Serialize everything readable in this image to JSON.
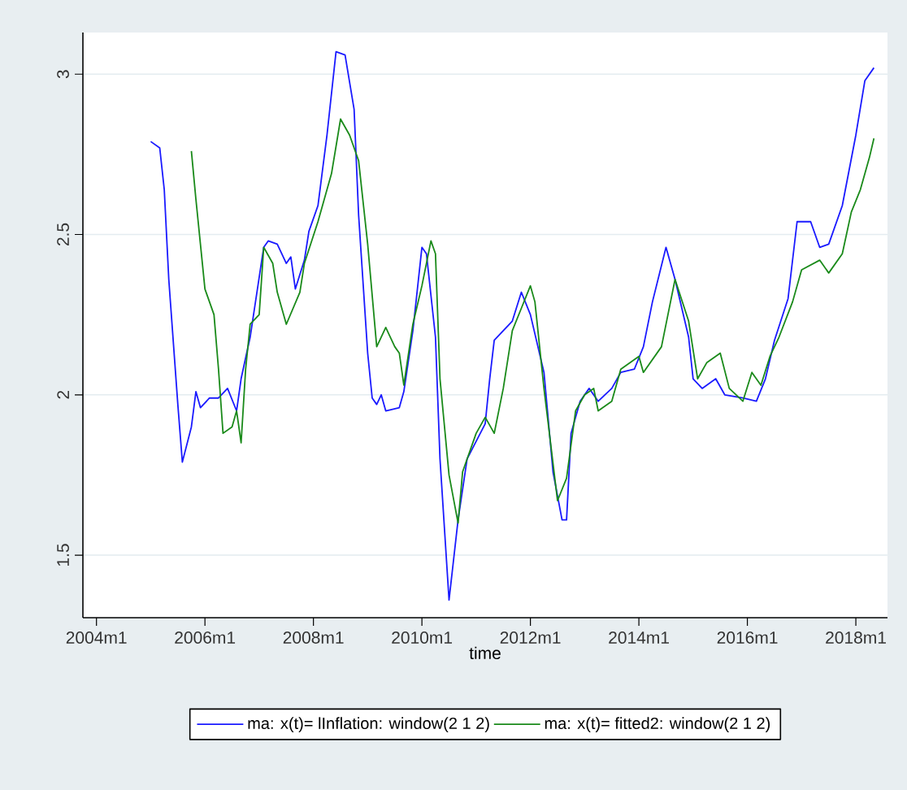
{
  "chart_data": {
    "type": "line",
    "xlabel": "time",
    "xlim": [
      "2003-10",
      "2018-08"
    ],
    "ylim": [
      1.305,
      3.13
    ],
    "xticks": [
      {
        "value": "2004-01",
        "label": "2004m1"
      },
      {
        "value": "2006-01",
        "label": "2006m1"
      },
      {
        "value": "2008-01",
        "label": "2008m1"
      },
      {
        "value": "2010-01",
        "label": "2010m1"
      },
      {
        "value": "2012-01",
        "label": "2012m1"
      },
      {
        "value": "2014-01",
        "label": "2014m1"
      },
      {
        "value": "2016-01",
        "label": "2016m1"
      },
      {
        "value": "2018-01",
        "label": "2018m1"
      }
    ],
    "yticks": [
      1.5,
      2,
      2.5,
      3
    ],
    "grid": "y",
    "legend": "bottom",
    "series": [
      {
        "name": "ma: x(t)= lInflation: window(2 1 2)",
        "color": "#1a1aff",
        "x": [
          "2005-01",
          "2005-03",
          "2005-04",
          "2005-05",
          "2005-07",
          "2005-08",
          "2005-10",
          "2005-11",
          "2005-12",
          "2006-02",
          "2006-04",
          "2006-06",
          "2006-08",
          "2006-09",
          "2006-11",
          "2007-02",
          "2007-03",
          "2007-05",
          "2007-07",
          "2007-08",
          "2007-09",
          "2007-11",
          "2007-12",
          "2008-02",
          "2008-04",
          "2008-06",
          "2008-08",
          "2008-10",
          "2008-11",
          "2009-01",
          "2009-02",
          "2009-03",
          "2009-04",
          "2009-05",
          "2009-08",
          "2009-09",
          "2009-11",
          "2010-01",
          "2010-02",
          "2010-04",
          "2010-05",
          "2010-07",
          "2010-09",
          "2010-11",
          "2011-03",
          "2011-04",
          "2011-05",
          "2011-07",
          "2011-09",
          "2011-11",
          "2012-01",
          "2012-04",
          "2012-06",
          "2012-08",
          "2012-09",
          "2012-10",
          "2012-12",
          "2013-02",
          "2013-04",
          "2013-07",
          "2013-09",
          "2013-12",
          "2014-02",
          "2014-04",
          "2014-07",
          "2014-09",
          "2014-12",
          "2015-01",
          "2015-03",
          "2015-06",
          "2015-08",
          "2015-12",
          "2016-03",
          "2016-05",
          "2016-07",
          "2016-10",
          "2016-12",
          "2017-03",
          "2017-05",
          "2017-07",
          "2017-10",
          "2018-01",
          "2018-03",
          "2018-05"
        ],
        "values": [
          2.79,
          2.77,
          2.64,
          2.36,
          1.97,
          1.79,
          1.9,
          2.01,
          1.96,
          1.99,
          1.99,
          2.02,
          1.95,
          2.05,
          2.18,
          2.46,
          2.48,
          2.47,
          2.41,
          2.43,
          2.33,
          2.42,
          2.51,
          2.59,
          2.81,
          3.07,
          3.06,
          2.89,
          2.56,
          2.13,
          1.99,
          1.97,
          2.0,
          1.95,
          1.96,
          2.01,
          2.2,
          2.46,
          2.44,
          2.18,
          1.8,
          1.36,
          1.61,
          1.8,
          1.91,
          2.05,
          2.17,
          2.2,
          2.23,
          2.32,
          2.25,
          2.07,
          1.76,
          1.61,
          1.61,
          1.88,
          1.98,
          2.02,
          1.98,
          2.02,
          2.07,
          2.08,
          2.15,
          2.29,
          2.46,
          2.36,
          2.18,
          2.05,
          2.02,
          2.05,
          2.0,
          1.99,
          1.98,
          2.05,
          2.17,
          2.3,
          2.54,
          2.54,
          2.46,
          2.47,
          2.59,
          2.81,
          2.98,
          3.02
        ]
      },
      {
        "name": "ma: x(t)= fitted2: window(2 1 2)",
        "color": "#1a8a1a",
        "x": [
          "2005-10",
          "2005-11",
          "2005-12",
          "2006-01",
          "2006-03",
          "2006-04",
          "2006-05",
          "2006-07",
          "2006-08",
          "2006-09",
          "2006-10",
          "2006-11",
          "2007-01",
          "2007-02",
          "2007-04",
          "2007-05",
          "2007-07",
          "2007-10",
          "2007-11",
          "2008-02",
          "2008-05",
          "2008-07",
          "2008-09",
          "2008-11",
          "2009-01",
          "2009-03",
          "2009-05",
          "2009-07",
          "2009-08",
          "2009-09",
          "2009-11",
          "2010-01",
          "2010-03",
          "2010-04",
          "2010-05",
          "2010-07",
          "2010-09",
          "2010-10",
          "2011-01",
          "2011-03",
          "2011-05",
          "2011-07",
          "2011-09",
          "2011-11",
          "2012-01",
          "2012-02",
          "2012-04",
          "2012-07",
          "2012-09",
          "2012-11",
          "2013-01",
          "2013-03",
          "2013-04",
          "2013-07",
          "2013-09",
          "2014-01",
          "2014-02",
          "2014-06",
          "2014-08",
          "2014-09",
          "2014-12",
          "2015-02",
          "2015-04",
          "2015-07",
          "2015-09",
          "2015-12",
          "2016-02",
          "2016-04",
          "2016-06",
          "2016-08",
          "2016-11",
          "2017-01",
          "2017-05",
          "2017-07",
          "2017-10",
          "2017-12",
          "2018-02",
          "2018-04",
          "2018-05"
        ],
        "values": [
          2.76,
          2.61,
          2.47,
          2.33,
          2.25,
          2.08,
          1.88,
          1.9,
          1.95,
          1.85,
          2.08,
          2.22,
          2.25,
          2.46,
          2.41,
          2.32,
          2.22,
          2.32,
          2.41,
          2.54,
          2.69,
          2.86,
          2.81,
          2.73,
          2.47,
          2.15,
          2.21,
          2.15,
          2.13,
          2.03,
          2.22,
          2.34,
          2.48,
          2.44,
          2.05,
          1.75,
          1.6,
          1.76,
          1.88,
          1.93,
          1.88,
          2.02,
          2.2,
          2.27,
          2.34,
          2.29,
          2.02,
          1.67,
          1.74,
          1.95,
          2.0,
          2.02,
          1.95,
          1.98,
          2.08,
          2.12,
          2.07,
          2.15,
          2.29,
          2.36,
          2.23,
          2.05,
          2.1,
          2.13,
          2.02,
          1.98,
          2.07,
          2.03,
          2.12,
          2.18,
          2.29,
          2.39,
          2.42,
          2.38,
          2.44,
          2.57,
          2.64,
          2.74,
          2.8
        ]
      }
    ]
  }
}
